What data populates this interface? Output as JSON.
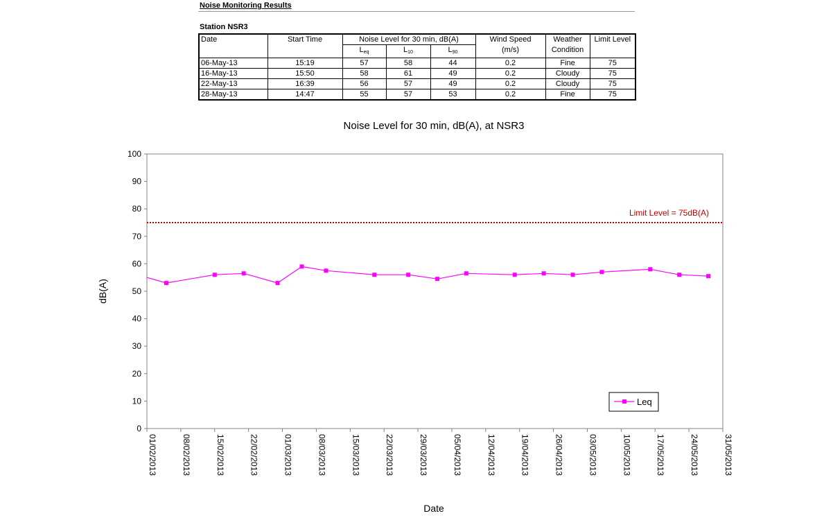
{
  "heading": "Noise Monitoring Results",
  "station": "Station NSR3",
  "table": {
    "headers": {
      "date": "Date",
      "start_time": "Start Time",
      "noise_level": "Noise Level for 30 min, dB(A)",
      "leq": "L",
      "leq_sub": "eq",
      "l10": "L",
      "l10_sub": "10",
      "l90": "L",
      "l90_sub": "90",
      "wind_speed": "Wind Speed",
      "wind_unit": "(m/s)",
      "weather_1": "Weather",
      "weather_2": "Condition",
      "limit_level": "Limit Level"
    },
    "rows": [
      {
        "date": "06-May-13",
        "time": "15:19",
        "leq": "57",
        "l10": "58",
        "l90": "44",
        "wind": "0.2",
        "weather": "Fine",
        "limit": "75"
      },
      {
        "date": "16-May-13",
        "time": "15:50",
        "leq": "58",
        "l10": "61",
        "l90": "49",
        "wind": "0.2",
        "weather": "Cloudy",
        "limit": "75"
      },
      {
        "date": "22-May-13",
        "time": "16:39",
        "leq": "56",
        "l10": "57",
        "l90": "49",
        "wind": "0.2",
        "weather": "Cloudy",
        "limit": "75"
      },
      {
        "date": "28-May-13",
        "time": "14:47",
        "leq": "55",
        "l10": "57",
        "l90": "53",
        "wind": "0.2",
        "weather": "Fine",
        "limit": "75"
      }
    ]
  },
  "chart_data": {
    "type": "line",
    "title": "Noise Level for 30 min, dB(A), at NSR3",
    "xlabel": "Date",
    "ylabel": "dB(A)",
    "xlim": [
      "01/02/2013",
      "31/05/2013"
    ],
    "ylim": [
      0,
      100
    ],
    "yticks": [
      0,
      10,
      20,
      30,
      40,
      50,
      60,
      70,
      80,
      90,
      100
    ],
    "xticks": [
      "01/02/2013",
      "08/02/2013",
      "15/02/2013",
      "22/02/2013",
      "01/03/2013",
      "08/03/2013",
      "15/03/2013",
      "22/03/2013",
      "29/03/2013",
      "05/04/2013",
      "12/04/2013",
      "19/04/2013",
      "26/04/2013",
      "03/05/2013",
      "10/05/2013",
      "17/05/2013",
      "24/05/2013",
      "31/05/2013"
    ],
    "grid": false,
    "legend": "bottom-right",
    "series": [
      {
        "name": "Leq",
        "color": "#ff00ff",
        "x": [
          "01/02/2013",
          "05/02/2013",
          "15/02/2013",
          "21/02/2013",
          "28/02/2013",
          "05/03/2013",
          "10/03/2013",
          "20/03/2013",
          "27/03/2013",
          "02/04/2013",
          "08/04/2013",
          "18/04/2013",
          "24/04/2013",
          "30/04/2013",
          "06/05/2013",
          "16/05/2013",
          "22/05/2013",
          "28/05/2013"
        ],
        "values": [
          55,
          53,
          56,
          56.5,
          53,
          59,
          57.5,
          56,
          56,
          54.5,
          56.5,
          56,
          56.5,
          56,
          57,
          58,
          56,
          55.5
        ]
      }
    ],
    "annotations": [
      {
        "text": "Limit Level = 75dB(A)",
        "y": 75,
        "color": "#c00000"
      }
    ]
  }
}
